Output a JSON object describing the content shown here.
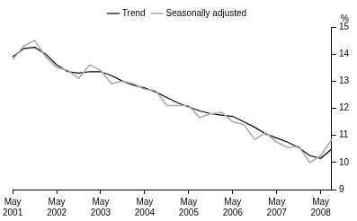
{
  "chart_data": {
    "type": "line",
    "y_label": "%",
    "categories": [
      "May 2001",
      null,
      null,
      null,
      "May 2002",
      null,
      null,
      null,
      "May 2003",
      null,
      null,
      null,
      "May 2004",
      null,
      null,
      null,
      "May 2005",
      null,
      null,
      null,
      "May 2006",
      null,
      null,
      null,
      "May 2007",
      null,
      null,
      null,
      "May 2008",
      null
    ],
    "series": [
      {
        "name": "Trend",
        "color": "#000000",
        "values": [
          13.9,
          14.2,
          14.25,
          14.0,
          13.6,
          13.35,
          13.3,
          13.35,
          13.35,
          13.2,
          13.0,
          12.85,
          12.75,
          12.6,
          12.4,
          12.2,
          12.05,
          11.9,
          11.8,
          11.75,
          11.7,
          11.5,
          11.3,
          11.05,
          10.9,
          10.75,
          10.55,
          10.25,
          10.15,
          10.5
        ]
      },
      {
        "name": "Seasonally adjusted",
        "color": "#aaaaaa",
        "values": [
          13.8,
          14.3,
          14.5,
          13.9,
          13.5,
          13.4,
          13.1,
          13.6,
          13.4,
          12.9,
          13.0,
          12.9,
          12.7,
          12.65,
          12.1,
          12.1,
          12.1,
          11.65,
          11.8,
          11.85,
          11.5,
          11.4,
          10.85,
          11.1,
          10.75,
          10.55,
          10.6,
          10.0,
          10.25,
          10.85
        ]
      }
    ],
    "ylim": [
      9,
      15
    ],
    "yticks": [
      9,
      10,
      11,
      12,
      13,
      14,
      15
    ],
    "grid": false,
    "legend": "upper right"
  }
}
